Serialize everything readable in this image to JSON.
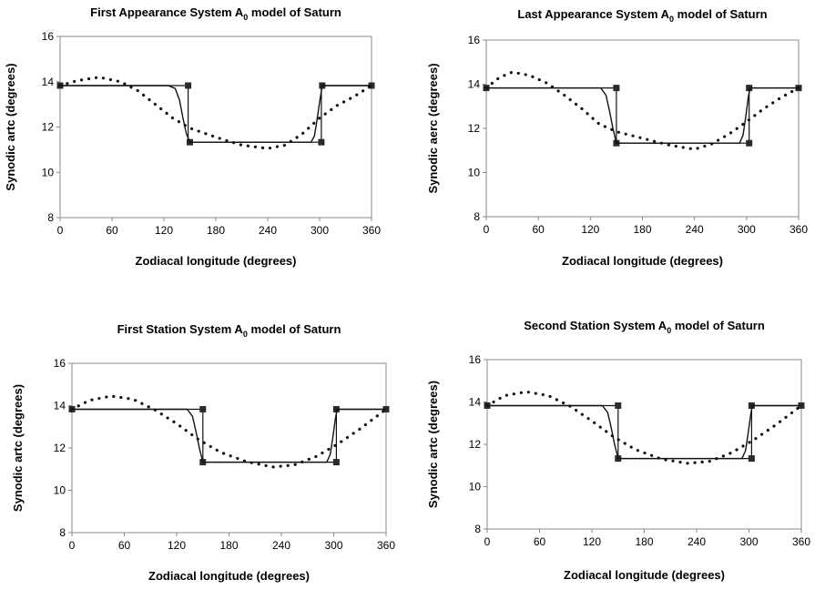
{
  "chart_data": [
    {
      "type": "line",
      "title": "First Appearance System A",
      "title_subscript": "0",
      "title_suffix": " model of Saturn",
      "xlabel": "Zodiacal longitude (degrees)",
      "ylabel": "Synodic artc (degrees)",
      "xlim": [
        0,
        360
      ],
      "ylim": [
        8,
        16
      ],
      "xticks": [
        0,
        60,
        120,
        180,
        240,
        300,
        360
      ],
      "yticks": [
        8,
        10,
        12,
        14,
        16
      ],
      "grid": false,
      "series": [
        {
          "style": "step-markers",
          "points": [
            [
              0,
              13.83
            ],
            [
              148,
              13.83
            ],
            [
              148,
              11.33
            ],
            [
              150,
              11.33
            ],
            [
              302,
              11.33
            ],
            [
              302,
              13.83
            ],
            [
              360,
              13.83
            ]
          ],
          "markers": [
            [
              0,
              13.83
            ],
            [
              148,
              13.83
            ],
            [
              150,
              11.33
            ],
            [
              302,
              11.33
            ],
            [
              303,
              13.83
            ],
            [
              360,
              13.83
            ]
          ]
        },
        {
          "style": "smooth-solid",
          "points": [
            [
              0,
              13.83
            ],
            [
              125,
              13.83
            ],
            [
              133,
              13.7
            ],
            [
              138,
              13.2
            ],
            [
              142,
              12.4
            ],
            [
              146,
              11.7
            ],
            [
              150,
              11.33
            ],
            [
              290,
              11.33
            ],
            [
              294,
              11.6
            ],
            [
              297,
              12.3
            ],
            [
              300,
              13.1
            ],
            [
              303,
              13.83
            ],
            [
              360,
              13.83
            ]
          ]
        },
        {
          "style": "dotted",
          "points": [
            [
              0,
              13.83
            ],
            [
              20,
              14.05
            ],
            [
              45,
              14.2
            ],
            [
              70,
              14.0
            ],
            [
              90,
              13.6
            ],
            [
              110,
              13.0
            ],
            [
              130,
              12.4
            ],
            [
              150,
              11.95
            ],
            [
              180,
              11.55
            ],
            [
              210,
              11.2
            ],
            [
              240,
              11.05
            ],
            [
              260,
              11.2
            ],
            [
              280,
              11.7
            ],
            [
              300,
              12.4
            ],
            [
              320,
              12.95
            ],
            [
              340,
              13.35
            ],
            [
              360,
              13.83
            ]
          ]
        }
      ]
    },
    {
      "type": "line",
      "title": "Last Appearance System A",
      "title_subscript": "0",
      "title_suffix": " model of Saturn",
      "xlabel": "Zodiacal longitude (degrees)",
      "ylabel": "Synodic aerc (degrees)",
      "xlim": [
        0,
        360
      ],
      "ylim": [
        8,
        16
      ],
      "xticks": [
        0,
        60,
        120,
        180,
        240,
        300,
        360
      ],
      "yticks": [
        8,
        10,
        12,
        14,
        16
      ],
      "grid": false,
      "series": [
        {
          "style": "step-markers",
          "points": [
            [
              0,
              13.83
            ],
            [
              150,
              13.83
            ],
            [
              150,
              11.33
            ],
            [
              303,
              11.33
            ],
            [
              303,
              13.83
            ],
            [
              360,
              13.83
            ]
          ],
          "markers": [
            [
              0,
              13.83
            ],
            [
              150,
              13.83
            ],
            [
              150,
              11.33
            ],
            [
              303,
              11.33
            ],
            [
              303,
              13.83
            ],
            [
              360,
              13.83
            ]
          ]
        },
        {
          "style": "smooth-solid",
          "points": [
            [
              0,
              13.83
            ],
            [
              132,
              13.83
            ],
            [
              138,
              13.5
            ],
            [
              142,
              12.8
            ],
            [
              146,
              12.0
            ],
            [
              150,
              11.33
            ],
            [
              292,
              11.33
            ],
            [
              296,
              11.7
            ],
            [
              299,
              12.5
            ],
            [
              302,
              13.4
            ],
            [
              304,
              13.83
            ],
            [
              360,
              13.83
            ]
          ]
        },
        {
          "style": "dotted",
          "points": [
            [
              0,
              13.83
            ],
            [
              15,
              14.3
            ],
            [
              30,
              14.55
            ],
            [
              50,
              14.4
            ],
            [
              70,
              14.05
            ],
            [
              90,
              13.5
            ],
            [
              110,
              12.9
            ],
            [
              130,
              12.2
            ],
            [
              150,
              11.85
            ],
            [
              180,
              11.55
            ],
            [
              210,
              11.25
            ],
            [
              240,
              11.05
            ],
            [
              260,
              11.3
            ],
            [
              280,
              11.75
            ],
            [
              300,
              12.3
            ],
            [
              320,
              12.9
            ],
            [
              340,
              13.4
            ],
            [
              360,
              13.83
            ]
          ]
        }
      ]
    },
    {
      "type": "line",
      "title": "First Station System A",
      "title_subscript": "0",
      "title_suffix": " model of Saturn",
      "xlabel": "Zodiacal longitude (degrees)",
      "ylabel": "Synodic artc (degrees)",
      "xlim": [
        0,
        360
      ],
      "ylim": [
        8,
        16
      ],
      "xticks": [
        0,
        60,
        120,
        180,
        240,
        300,
        360
      ],
      "yticks": [
        8,
        10,
        12,
        14,
        16
      ],
      "grid": false,
      "series": [
        {
          "style": "step-markers",
          "points": [
            [
              0,
              13.83
            ],
            [
              150,
              13.83
            ],
            [
              150,
              11.33
            ],
            [
              303,
              11.33
            ],
            [
              303,
              13.83
            ],
            [
              360,
              13.83
            ]
          ],
          "markers": [
            [
              0,
              13.83
            ],
            [
              150,
              13.83
            ],
            [
              150,
              11.33
            ],
            [
              303,
              11.33
            ],
            [
              303,
              13.83
            ],
            [
              360,
              13.83
            ]
          ]
        },
        {
          "style": "smooth-solid",
          "points": [
            [
              0,
              13.83
            ],
            [
              132,
              13.83
            ],
            [
              138,
              13.5
            ],
            [
              142,
              12.8
            ],
            [
              146,
              12.0
            ],
            [
              150,
              11.33
            ],
            [
              292,
              11.33
            ],
            [
              296,
              11.7
            ],
            [
              299,
              12.5
            ],
            [
              302,
              13.4
            ],
            [
              304,
              13.83
            ],
            [
              360,
              13.83
            ]
          ]
        },
        {
          "style": "dotted",
          "points": [
            [
              0,
              13.83
            ],
            [
              20,
              14.25
            ],
            [
              45,
              14.45
            ],
            [
              70,
              14.3
            ],
            [
              95,
              13.8
            ],
            [
              120,
              13.15
            ],
            [
              145,
              12.4
            ],
            [
              170,
              11.8
            ],
            [
              200,
              11.35
            ],
            [
              230,
              11.1
            ],
            [
              255,
              11.2
            ],
            [
              280,
              11.6
            ],
            [
              305,
              12.2
            ],
            [
              330,
              12.9
            ],
            [
              360,
              13.83
            ]
          ]
        }
      ]
    },
    {
      "type": "line",
      "title": "Second Station System A",
      "title_subscript": "0",
      "title_suffix": " model of Saturn",
      "xlabel": "Zodiacal longitude (degrees)",
      "ylabel": "Synodic artc (degrees)",
      "xlim": [
        0,
        360
      ],
      "ylim": [
        8,
        16
      ],
      "xticks": [
        0,
        60,
        120,
        180,
        240,
        300,
        360
      ],
      "yticks": [
        8,
        10,
        12,
        14,
        16
      ],
      "grid": false,
      "series": [
        {
          "style": "step-markers",
          "points": [
            [
              0,
              13.83
            ],
            [
              150,
              13.83
            ],
            [
              150,
              11.33
            ],
            [
              303,
              11.33
            ],
            [
              303,
              13.83
            ],
            [
              360,
              13.83
            ]
          ],
          "markers": [
            [
              0,
              13.83
            ],
            [
              150,
              13.83
            ],
            [
              150,
              11.33
            ],
            [
              303,
              11.33
            ],
            [
              303,
              13.83
            ],
            [
              360,
              13.83
            ]
          ]
        },
        {
          "style": "smooth-solid",
          "points": [
            [
              0,
              13.83
            ],
            [
              132,
              13.83
            ],
            [
              138,
              13.5
            ],
            [
              142,
              12.8
            ],
            [
              146,
              12.0
            ],
            [
              150,
              11.33
            ],
            [
              292,
              11.33
            ],
            [
              296,
              11.7
            ],
            [
              299,
              12.5
            ],
            [
              302,
              13.4
            ],
            [
              304,
              13.83
            ],
            [
              360,
              13.83
            ]
          ]
        },
        {
          "style": "dotted",
          "points": [
            [
              0,
              13.83
            ],
            [
              20,
              14.3
            ],
            [
              45,
              14.48
            ],
            [
              70,
              14.3
            ],
            [
              95,
              13.8
            ],
            [
              120,
              13.1
            ],
            [
              145,
              12.35
            ],
            [
              170,
              11.75
            ],
            [
              200,
              11.3
            ],
            [
              230,
              11.1
            ],
            [
              255,
              11.2
            ],
            [
              280,
              11.6
            ],
            [
              305,
              12.2
            ],
            [
              330,
              12.9
            ],
            [
              360,
              13.83
            ]
          ]
        }
      ]
    }
  ]
}
